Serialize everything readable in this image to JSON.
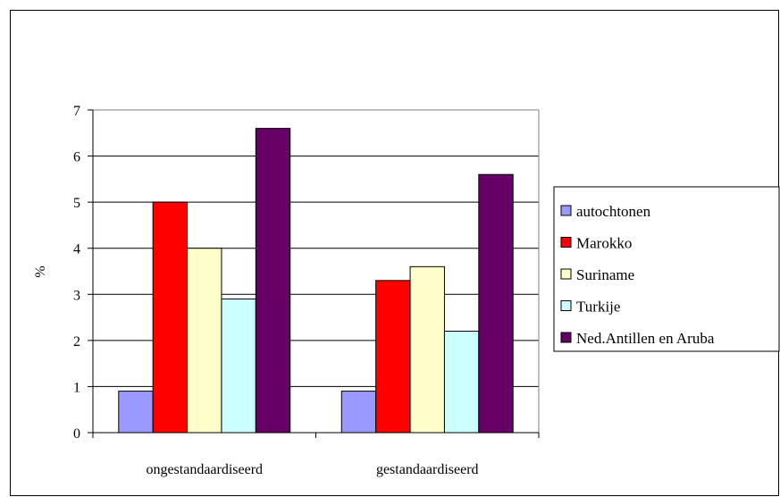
{
  "chart_data": {
    "type": "bar",
    "title": "",
    "xlabel": "",
    "ylabel": "%",
    "ylim": [
      0,
      7
    ],
    "yticks": [
      "0",
      "1",
      "2",
      "3",
      "4",
      "5",
      "6",
      "7"
    ],
    "grid": true,
    "legend_position": "right",
    "categories": [
      "ongestandaardiseerd",
      "gestandaardiseerd"
    ],
    "series": [
      {
        "name": "autochtonen",
        "color": "#9999ff",
        "values": [
          0.9,
          0.9
        ]
      },
      {
        "name": "Marokko",
        "color": "#ff0000",
        "values": [
          5.0,
          3.3
        ]
      },
      {
        "name": "Suriname",
        "color": "#ffffcc",
        "values": [
          4.0,
          3.6
        ]
      },
      {
        "name": "Turkije",
        "color": "#ccffff",
        "values": [
          2.9,
          2.2
        ]
      },
      {
        "name": "Ned.Antillen en Aruba",
        "color": "#660066",
        "values": [
          6.6,
          5.6
        ]
      }
    ]
  }
}
